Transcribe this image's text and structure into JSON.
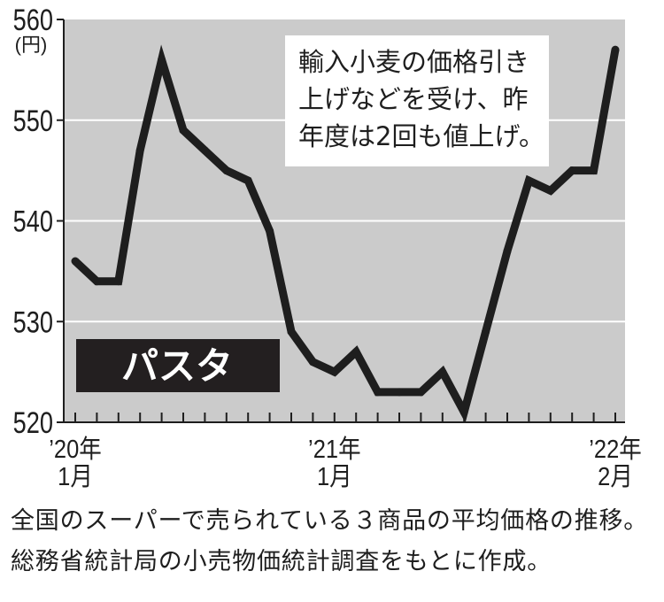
{
  "chart_data": {
    "type": "line",
    "x": [
      "2020-01",
      "2020-02",
      "2020-03",
      "2020-04",
      "2020-05",
      "2020-06",
      "2020-07",
      "2020-08",
      "2020-09",
      "2020-10",
      "2020-11",
      "2020-12",
      "2021-01",
      "2021-02",
      "2021-03",
      "2021-04",
      "2021-05",
      "2021-06",
      "2021-07",
      "2021-08",
      "2021-09",
      "2021-10",
      "2021-11",
      "2021-12",
      "2022-01",
      "2022-02"
    ],
    "series": [
      {
        "name": "パスタ",
        "values": [
          536,
          534,
          534,
          547,
          556,
          549,
          547,
          545,
          544,
          539,
          529,
          526,
          525,
          527,
          523,
          523,
          523,
          525,
          521,
          529,
          537,
          544,
          543,
          545,
          545,
          557
        ]
      }
    ],
    "ylabel": "(円)",
    "ylim": [
      520,
      560
    ],
    "yticks": [
      560,
      550,
      540,
      530,
      520
    ],
    "x_ticks": [
      {
        "x": "2020-01",
        "label": [
          "’20年",
          "1月"
        ]
      },
      {
        "x": "2021-01",
        "label": [
          "’21年",
          "1月"
        ]
      },
      {
        "x": "2022-02",
        "label": [
          "’22年",
          "2月"
        ]
      }
    ],
    "annotation": [
      "輸入小麦の価格引き",
      "上げなどを受け、昨",
      "年度は2回も値上げ。"
    ],
    "grid": true,
    "series_label_position": "bottom-left",
    "colors": {
      "plot_background": "#cbcbcb",
      "gridline": "#ffffff",
      "axis": "#1e1e1e",
      "line": "#1e1e1e",
      "annotation_background": "#ffffff",
      "series_label_background": "#231f20",
      "series_label_text": "#ffffff"
    }
  },
  "caption": [
    "全国のスーパーで売られている３商品の平均価格の推移。",
    "総務省統計局の小売物価統計調査をもとに作成。"
  ]
}
